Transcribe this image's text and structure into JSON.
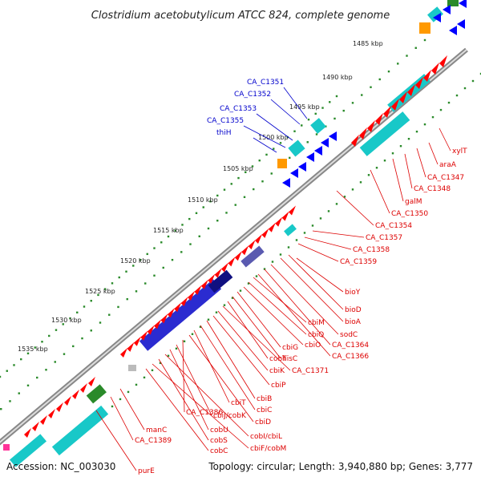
{
  "title": "Clostridium acetobutylicum ATCC 824, complete genome",
  "footer": {
    "accession": "Accession: NC_003030",
    "stats": "Topology: circular; Length: 3,940,880 bp; Genes: 3,777"
  },
  "colors": {
    "forward_gene": "#ff0000",
    "reverse_gene": "#0000ff",
    "label_forward": "#dd0000",
    "label_reverse": "#0000cc",
    "backbone": "#888888",
    "ticks": "#2a8a2a",
    "cyan": "#18c8c8",
    "navy": "#2b2bd0",
    "orange": "#ff9900",
    "green": "#2a8a2a"
  },
  "ticks": [
    "1485 kbp",
    "1490 kbp",
    "1495 kbp",
    "1500 kbp",
    "1505 kbp",
    "1510 kbp",
    "1515 kbp",
    "1520 kbp",
    "1525 kbp",
    "1530 kbp",
    "1535 kbp"
  ],
  "labels_reverse": [
    "CA_C1351",
    "CA_C1352",
    "CA_C1353",
    "CA_C1355",
    "thiH"
  ],
  "labels_forward": [
    "xylT",
    "araA",
    "CA_C1347",
    "CA_C1348",
    "galM",
    "CA_C1350",
    "CA_C1354",
    "CA_C1357",
    "CA_C1358",
    "CA_C1359",
    "bioY",
    "bioD",
    "bioA",
    "sodC",
    "CA_C1364",
    "CA_C1366",
    "cbiM",
    "cbiQ",
    "cbiO",
    "cbiG",
    "hisC",
    "cobT",
    "CA_C1371",
    "cbiK",
    "cbiP",
    "cbiB",
    "cbiC",
    "cbiT",
    "cbiD",
    "CA_C1386",
    "cbiJ/cobK",
    "cobU",
    "cobI/cbiL",
    "cobS",
    "cbiF/cobM",
    "cobC",
    "manC",
    "CA_C1389",
    "purE"
  ]
}
